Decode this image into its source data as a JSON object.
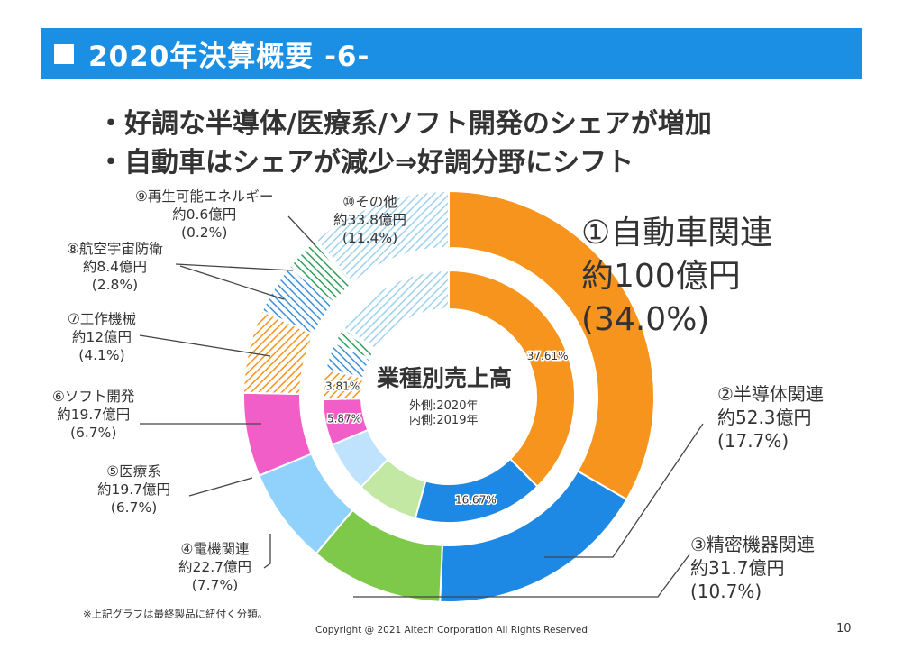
{
  "slide": {
    "title": "2020年決算概要 -6-",
    "bullets": [
      "・好調な半導体/医療系/ソフト開発のシェアが増加",
      "・自動車はシェアが減少⇒好調分野にシフト"
    ],
    "footnote": "※上記グラフは最終製品に紐付く分類。",
    "copyright": "Copyright @ 2021 Altech Corporation All Rights Reserved",
    "page_number": "10"
  },
  "chart_data": {
    "type": "pie",
    "title": "業種別売上高",
    "subtitle_outer": "外側:2020年",
    "subtitle_inner": "内側:2019年",
    "colors": [
      "#f7941d",
      "#1e88e5",
      "#7ec84a",
      "#90d2fb",
      "#f25ec7",
      "#f7941d",
      "#3a8fd8",
      "#2e9e5a",
      "#2e9e5a",
      "#9fd2ee"
    ],
    "hatched": [
      false,
      false,
      false,
      false,
      false,
      true,
      true,
      true,
      true,
      true
    ],
    "outer_2020": [
      {
        "name": "①自動車関連",
        "amount": "約100億円",
        "pct": "(34.0%)",
        "value": 34.0
      },
      {
        "name": "②半導体関連",
        "amount": "約52.3億円",
        "pct": "(17.7%)",
        "value": 17.7
      },
      {
        "name": "③精密機器関連",
        "amount": "約31.7億円",
        "pct": "(10.7%)",
        "value": 10.7
      },
      {
        "name": "④電機関連",
        "amount": "約22.7億円",
        "pct": "(7.7%)",
        "value": 7.7
      },
      {
        "name": "⑤医療系",
        "amount": "約19.7億円",
        "pct": "(6.7%)",
        "value": 6.7
      },
      {
        "name": "⑥ソフト開発",
        "amount": "約19.7億円",
        "pct": "(6.7%)",
        "value": 6.7
      },
      {
        "name": "⑦工作機械",
        "amount": "約12億円",
        "pct": "(4.1%)",
        "value": 4.1
      },
      {
        "name": "⑧航空宇宙防衛",
        "amount": "約8.4億円",
        "pct": "(2.8%)",
        "value": 2.8
      },
      {
        "name": "⑨再生可能エネルギー",
        "amount": "約0.6億円",
        "pct": "(0.2%)",
        "value": 0.2
      },
      {
        "name": "⑩その他",
        "amount": "約33.8億円",
        "pct": "(11.4%)",
        "value": 11.4
      }
    ],
    "inner_2019": {
      "values": [
        37.61,
        16.67,
        8.0,
        6.5,
        5.87,
        3.81,
        3.6,
        1.8,
        0.3,
        15.84
      ],
      "labels": [
        "37.61%",
        "16.67%",
        "",
        "",
        "5.87%",
        "3.81%",
        "",
        "",
        "",
        ""
      ]
    }
  }
}
